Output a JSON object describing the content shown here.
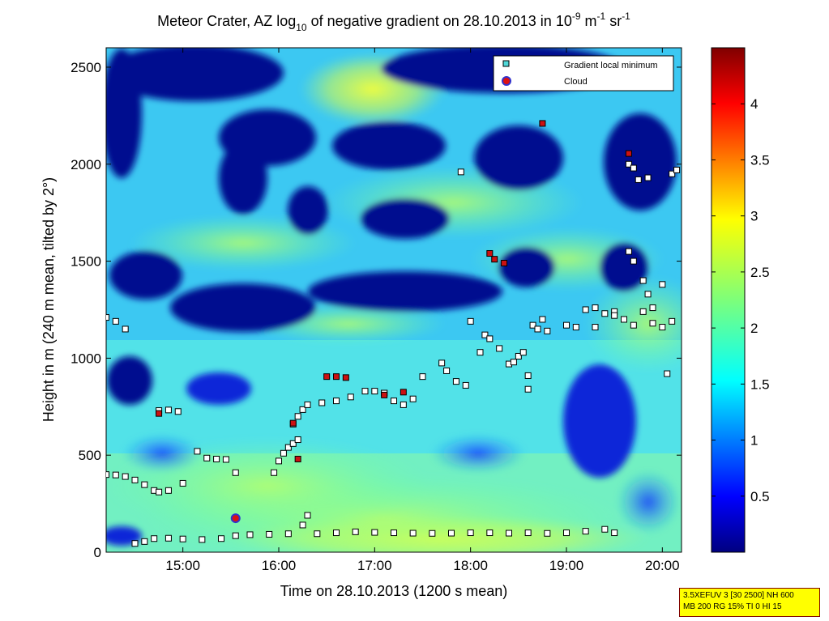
{
  "chart_data": {
    "type": "heatmap",
    "title": "Meteor Crater, AZ log10 of negative gradient on 28.10.2013 in 10-9 m-1 sr-1",
    "title_parts": {
      "prefix": "Meteor Crater, AZ log",
      "log_base": "10",
      "middle": " of negative gradient on 28.10.2013 in 10",
      "exp1": "-9",
      "unit1": " m",
      "exp2": "-1",
      "unit2": " sr",
      "exp3": "-1"
    },
    "xlabel": "Time on 28.10.2013 (1200 s mean)",
    "ylabel": "Height in m (240 m mean, tilted by 2°)",
    "x_range_hours": [
      14.2,
      20.2
    ],
    "ylim": [
      0,
      2600
    ],
    "x_ticks": [
      {
        "value": 15,
        "label": "15:00"
      },
      {
        "value": 16,
        "label": "16:00"
      },
      {
        "value": 17,
        "label": "17:00"
      },
      {
        "value": 18,
        "label": "18:00"
      },
      {
        "value": 19,
        "label": "19:00"
      },
      {
        "value": 20,
        "label": "20:00"
      }
    ],
    "y_ticks": [
      {
        "value": 0,
        "label": "0"
      },
      {
        "value": 500,
        "label": "500"
      },
      {
        "value": 1000,
        "label": "1000"
      },
      {
        "value": 1500,
        "label": "1500"
      },
      {
        "value": 2000,
        "label": "2000"
      },
      {
        "value": 2500,
        "label": "2500"
      }
    ],
    "colorbar": {
      "range": [
        0,
        4.5
      ],
      "ticks": [
        {
          "value": 0.5,
          "label": "0.5"
        },
        {
          "value": 1,
          "label": "1"
        },
        {
          "value": 1.5,
          "label": "1.5"
        },
        {
          "value": 2,
          "label": "2"
        },
        {
          "value": 2.5,
          "label": "2.5"
        },
        {
          "value": 3,
          "label": "3"
        },
        {
          "value": 3.5,
          "label": "3.5"
        },
        {
          "value": 4,
          "label": "4"
        }
      ]
    },
    "legend": {
      "placement": "top-right",
      "entries": [
        {
          "label": "Gradient local minimum",
          "marker": "square",
          "color": "#4fd8d8"
        },
        {
          "label": "Cloud",
          "marker": "circle",
          "color": "#cc1111"
        }
      ]
    },
    "series": [
      {
        "name": "Gradient local minimum",
        "points": [
          [
            14.2,
            400
          ],
          [
            14.3,
            398
          ],
          [
            14.4,
            390
          ],
          [
            14.5,
            372
          ],
          [
            14.6,
            348
          ],
          [
            14.7,
            318
          ],
          [
            14.2,
            1210
          ],
          [
            14.3,
            1190
          ],
          [
            14.4,
            1150
          ],
          [
            14.75,
            730
          ],
          [
            14.85,
            733
          ],
          [
            14.95,
            725
          ],
          [
            14.75,
            310
          ],
          [
            14.85,
            318
          ],
          [
            15.0,
            355
          ],
          [
            15.15,
            520
          ],
          [
            15.25,
            485
          ],
          [
            15.35,
            480
          ],
          [
            15.45,
            478
          ],
          [
            14.5,
            45
          ],
          [
            14.6,
            55
          ],
          [
            14.7,
            70
          ],
          [
            14.85,
            72
          ],
          [
            15.0,
            68
          ],
          [
            15.2,
            65
          ],
          [
            15.4,
            70
          ],
          [
            15.55,
            85
          ],
          [
            15.7,
            90
          ],
          [
            15.9,
            92
          ],
          [
            16.1,
            95
          ],
          [
            16.25,
            140
          ],
          [
            16.3,
            190
          ],
          [
            16.4,
            95
          ],
          [
            16.6,
            100
          ],
          [
            16.8,
            105
          ],
          [
            17.0,
            102
          ],
          [
            17.2,
            100
          ],
          [
            17.4,
            98
          ],
          [
            17.6,
            97
          ],
          [
            17.8,
            98
          ],
          [
            18.0,
            100
          ],
          [
            18.2,
            100
          ],
          [
            18.4,
            98
          ],
          [
            18.6,
            100
          ],
          [
            18.8,
            97
          ],
          [
            19.0,
            100
          ],
          [
            19.2,
            108
          ],
          [
            19.4,
            118
          ],
          [
            19.5,
            100
          ],
          [
            15.55,
            410
          ],
          [
            15.95,
            410
          ],
          [
            16.0,
            470
          ],
          [
            16.05,
            510
          ],
          [
            16.1,
            540
          ],
          [
            16.15,
            560
          ],
          [
            16.2,
            580
          ],
          [
            16.15,
            660
          ],
          [
            16.2,
            700
          ],
          [
            16.25,
            735
          ],
          [
            16.3,
            760
          ],
          [
            16.45,
            770
          ],
          [
            16.6,
            780
          ],
          [
            16.75,
            800
          ],
          [
            16.9,
            830
          ],
          [
            17.0,
            830
          ],
          [
            17.1,
            820
          ],
          [
            17.1,
            820
          ],
          [
            17.3,
            760
          ],
          [
            17.4,
            790
          ],
          [
            17.2,
            780
          ],
          [
            17.5,
            905
          ],
          [
            17.7,
            975
          ],
          [
            17.75,
            935
          ],
          [
            17.85,
            880
          ],
          [
            17.95,
            860
          ],
          [
            17.9,
            1960
          ],
          [
            18.1,
            1030
          ],
          [
            18.15,
            1120
          ],
          [
            18.2,
            1100
          ],
          [
            18.3,
            1050
          ],
          [
            18.4,
            970
          ],
          [
            18.45,
            980
          ],
          [
            18.5,
            1010
          ],
          [
            18.55,
            1030
          ],
          [
            18.65,
            1170
          ],
          [
            18.7,
            1150
          ],
          [
            18.75,
            1200
          ],
          [
            18.8,
            1140
          ],
          [
            18.6,
            910
          ],
          [
            18.6,
            840
          ],
          [
            19.0,
            1170
          ],
          [
            19.1,
            1160
          ],
          [
            19.2,
            1250
          ],
          [
            19.3,
            1260
          ],
          [
            19.4,
            1230
          ],
          [
            19.5,
            1240
          ],
          [
            19.6,
            1200
          ],
          [
            19.7,
            1170
          ],
          [
            19.8,
            1240
          ],
          [
            19.9,
            1180
          ],
          [
            20.0,
            1160
          ],
          [
            20.1,
            1190
          ],
          [
            19.3,
            1160
          ],
          [
            19.5,
            1220
          ],
          [
            19.65,
            2000
          ],
          [
            19.7,
            1980
          ],
          [
            19.75,
            1920
          ],
          [
            19.85,
            1930
          ],
          [
            19.65,
            1550
          ],
          [
            19.7,
            1500
          ],
          [
            19.8,
            1400
          ],
          [
            19.85,
            1330
          ],
          [
            19.9,
            1260
          ],
          [
            20.0,
            1380
          ],
          [
            20.05,
            920
          ],
          [
            20.1,
            1950
          ],
          [
            20.15,
            1970
          ],
          [
            18.0,
            1190
          ]
        ]
      },
      {
        "name": "Cloud",
        "points": [
          [
            15.55,
            175
          ]
        ]
      },
      {
        "name": "Cloud layer",
        "points": [
          [
            14.75,
            715
          ],
          [
            16.15,
            665
          ],
          [
            16.2,
            480
          ],
          [
            16.5,
            905
          ],
          [
            16.6,
            905
          ],
          [
            16.7,
            900
          ],
          [
            17.1,
            810
          ],
          [
            17.3,
            825
          ],
          [
            18.2,
            1540
          ],
          [
            18.25,
            1510
          ],
          [
            18.35,
            1490
          ],
          [
            18.75,
            2210
          ],
          [
            19.65,
            2055
          ]
        ]
      }
    ]
  },
  "info_box": {
    "line1": "3.5XEFUV 3 [30 2500] NH 600",
    "line2": "MB 200 RG 15% TI 0 HI 15"
  }
}
